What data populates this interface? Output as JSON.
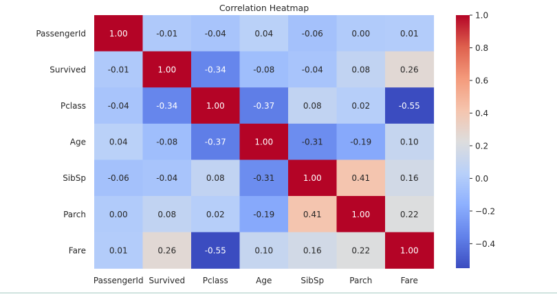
{
  "chart_data": {
    "type": "heatmap",
    "title": "Correlation Heatmap",
    "xlabel": "",
    "ylabel": "",
    "labels": [
      "PassengerId",
      "Survived",
      "Pclass",
      "Age",
      "SibSp",
      "Parch",
      "Fare"
    ],
    "matrix": [
      [
        1.0,
        -0.01,
        -0.04,
        0.04,
        -0.06,
        -0.0,
        0.01
      ],
      [
        -0.01,
        1.0,
        -0.34,
        -0.08,
        -0.04,
        0.08,
        0.26
      ],
      [
        -0.04,
        -0.34,
        1.0,
        -0.37,
        0.08,
        0.02,
        -0.55
      ],
      [
        0.04,
        -0.08,
        -0.37,
        1.0,
        -0.31,
        -0.19,
        0.1
      ],
      [
        -0.06,
        -0.04,
        0.08,
        -0.31,
        1.0,
        0.41,
        0.16
      ],
      [
        -0.0,
        0.08,
        0.02,
        -0.19,
        0.41,
        1.0,
        0.22
      ],
      [
        0.01,
        0.26,
        -0.55,
        0.1,
        0.16,
        0.22,
        1.0
      ]
    ],
    "value_format": "2 decimals",
    "colormap": "coolwarm",
    "color_range": [
      -0.55,
      1.0
    ],
    "colorbar_ticks": [
      "1.0",
      "0.8",
      "0.6",
      "0.4",
      "0.2",
      "0.0",
      "−0.2",
      "−0.4"
    ],
    "colorbar_tick_values": [
      1.0,
      0.8,
      0.6,
      0.4,
      0.2,
      0.0,
      -0.2,
      -0.4
    ],
    "grid": false,
    "legend": "colorbar-right"
  }
}
